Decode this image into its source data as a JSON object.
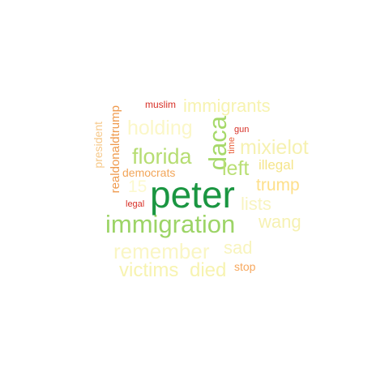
{
  "palette": {
    "dark_green": "#1a9641",
    "green": "#a6d96a",
    "light_green": "#d9ef8b",
    "light_yellow": "#ffffbf",
    "pale_yellow": "#f7f3a8",
    "gold": "#fee08b",
    "orange": "#fdae61",
    "dark_orange": "#f46d43",
    "red": "#d73027"
  },
  "words": {
    "peter": "peter",
    "immigration": "immigration",
    "daca": "daca",
    "florida": "florida",
    "left": "left",
    "holding": "holding",
    "immigrants": "immigrants",
    "mixielot": "mixielot",
    "trump": "trump",
    "illegal": "illegal",
    "lists": "lists",
    "wang": "wang",
    "remember": "remember",
    "sad": "sad",
    "victims": "victims",
    "died": "died",
    "n15": "15",
    "stop": "stop",
    "democrats": "democrats",
    "realdonaldtrump": "realdonaldtrump",
    "president": "president",
    "muslim": "muslim",
    "gun": "gun",
    "time": "time",
    "legal": "legal"
  }
}
